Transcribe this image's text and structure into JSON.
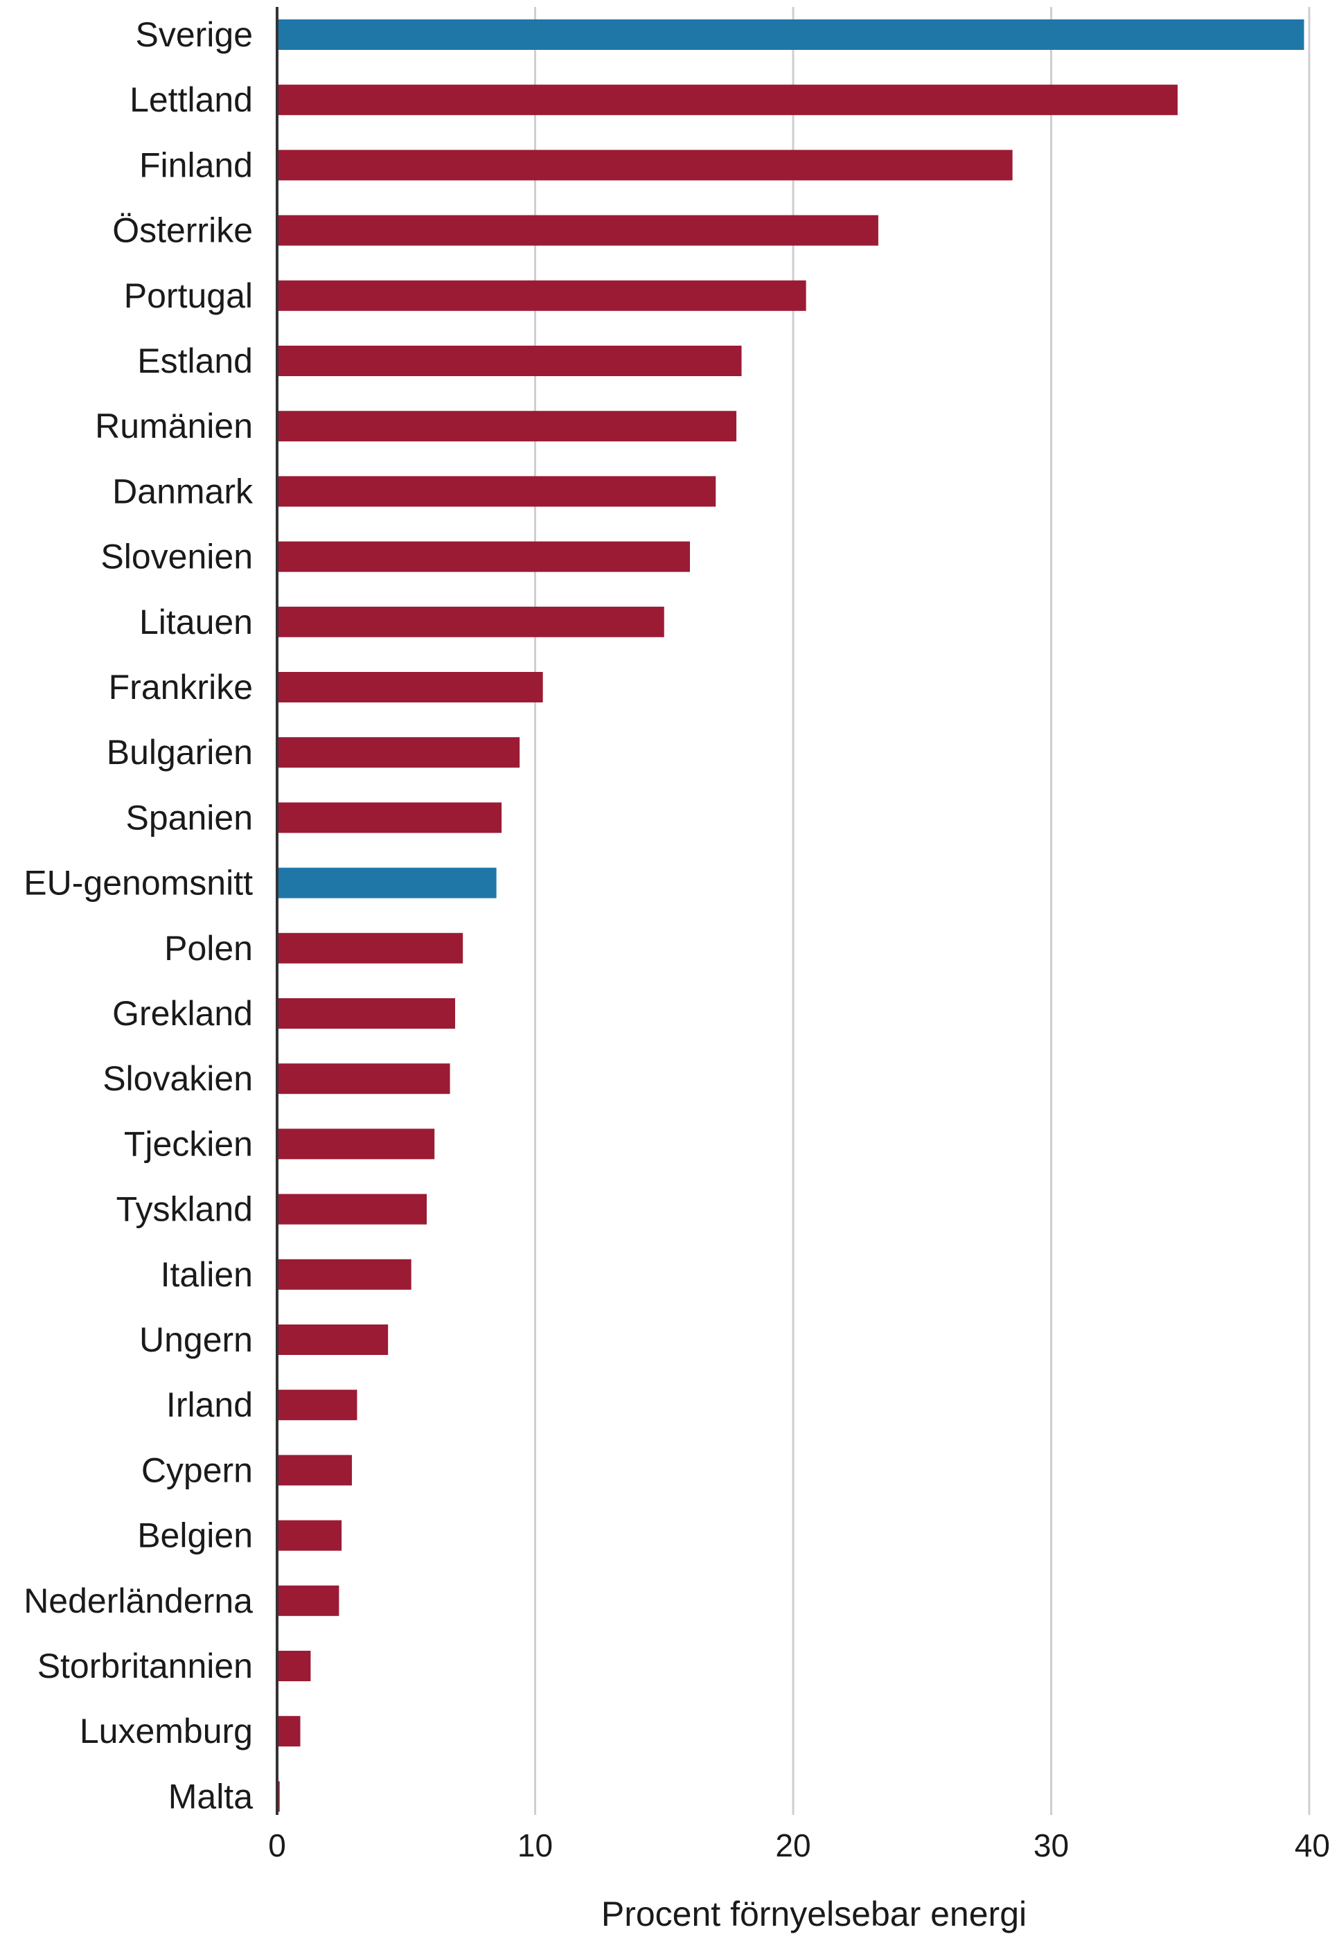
{
  "chart_data": {
    "type": "bar",
    "orientation": "horizontal",
    "categories": [
      "Sverige",
      "Lettland",
      "Finland",
      "Österrike",
      "Portugal",
      "Estland",
      "Rumänien",
      "Danmark",
      "Slovenien",
      "Litauen",
      "Frankrike",
      "Bulgarien",
      "Spanien",
      "EU-genomsnitt",
      "Polen",
      "Grekland",
      "Slovakien",
      "Tjeckien",
      "Tyskland",
      "Italien",
      "Ungern",
      "Irland",
      "Cypern",
      "Belgien",
      "Nederländerna",
      "Storbritannien",
      "Luxemburg",
      "Malta"
    ],
    "values": [
      39.8,
      34.9,
      28.5,
      23.3,
      20.5,
      18.0,
      17.8,
      17.0,
      16.0,
      15.0,
      10.3,
      9.4,
      8.7,
      8.5,
      7.2,
      6.9,
      6.7,
      6.1,
      5.8,
      5.2,
      4.3,
      3.1,
      2.9,
      2.5,
      2.4,
      1.3,
      0.9,
      0.1
    ],
    "highlight": [
      "Sverige",
      "EU-genomsnitt"
    ],
    "xlabel": "Procent förnyelsebar energi",
    "ylabel": "",
    "xlim": [
      0,
      40
    ],
    "xticks": [
      0,
      10,
      20,
      30,
      40
    ],
    "grid": "vertical",
    "colors": {
      "default": "#9b1b34",
      "highlight": "#1f77a8",
      "grid": "#cfcfcf",
      "axis": "#333333"
    }
  }
}
